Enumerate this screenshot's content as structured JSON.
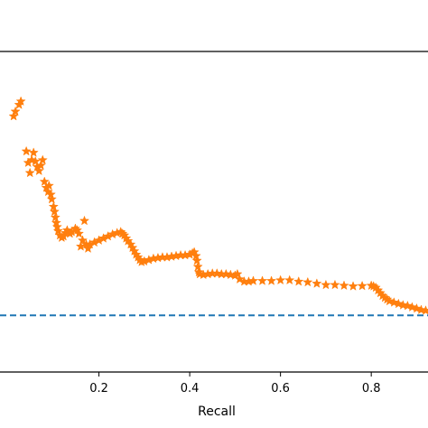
{
  "chart_data": {
    "type": "line",
    "title": "",
    "xlabel": "Recall",
    "ylabel": "",
    "xlim": [
      -0.018,
      0.925
    ],
    "ylim": [
      0.1,
      1.05
    ],
    "x_ticks": [
      0.2,
      0.4,
      0.6,
      0.8
    ],
    "x_tick_labels": [
      "0.2",
      "0.4",
      "0.6",
      "0.8"
    ],
    "grid": false,
    "legend": "none",
    "series": [
      {
        "style": "star-markers",
        "color": "#ff7f0e",
        "x": [
          0.012,
          0.016,
          0.024,
          0.028,
          0.04,
          0.044,
          0.048,
          0.052,
          0.056,
          0.06,
          0.064,
          0.068,
          0.072,
          0.076,
          0.08,
          0.084,
          0.088,
          0.09,
          0.094,
          0.096,
          0.1,
          0.102,
          0.104,
          0.106,
          0.108,
          0.11,
          0.114,
          0.118,
          0.122,
          0.126,
          0.13,
          0.136,
          0.14,
          0.148,
          0.152,
          0.156,
          0.16,
          0.164,
          0.168,
          0.172,
          0.176,
          0.18,
          0.19,
          0.2,
          0.21,
          0.22,
          0.23,
          0.24,
          0.248,
          0.252,
          0.256,
          0.26,
          0.264,
          0.27,
          0.274,
          0.278,
          0.282,
          0.286,
          0.29,
          0.294,
          0.3,
          0.31,
          0.32,
          0.33,
          0.34,
          0.35,
          0.36,
          0.37,
          0.38,
          0.39,
          0.4,
          0.406,
          0.41,
          0.414,
          0.416,
          0.418,
          0.42,
          0.422,
          0.43,
          0.44,
          0.45,
          0.46,
          0.47,
          0.48,
          0.49,
          0.5,
          0.505,
          0.51,
          0.52,
          0.53,
          0.54,
          0.56,
          0.58,
          0.6,
          0.62,
          0.64,
          0.66,
          0.68,
          0.7,
          0.72,
          0.74,
          0.76,
          0.78,
          0.8,
          0.805,
          0.81,
          0.815,
          0.82,
          0.825,
          0.83,
          0.835,
          0.84,
          0.85,
          0.86,
          0.87,
          0.88,
          0.89,
          0.9,
          0.91,
          0.92
        ],
        "y": [
          0.858,
          0.872,
          0.892,
          0.902,
          0.754,
          0.72,
          0.69,
          0.728,
          0.75,
          0.724,
          0.708,
          0.696,
          0.712,
          0.728,
          0.664,
          0.646,
          0.634,
          0.652,
          0.626,
          0.612,
          0.59,
          0.575,
          0.558,
          0.542,
          0.53,
          0.518,
          0.505,
          0.498,
          0.502,
          0.512,
          0.52,
          0.51,
          0.515,
          0.525,
          0.52,
          0.51,
          0.472,
          0.49,
          0.548,
          0.478,
          0.466,
          0.478,
          0.484,
          0.49,
          0.496,
          0.502,
          0.508,
          0.512,
          0.515,
          0.51,
          0.505,
          0.496,
          0.488,
          0.478,
          0.468,
          0.458,
          0.448,
          0.44,
          0.432,
          0.426,
          0.428,
          0.432,
          0.436,
          0.438,
          0.44,
          0.44,
          0.442,
          0.444,
          0.446,
          0.446,
          0.448,
          0.452,
          0.455,
          0.444,
          0.43,
          0.412,
          0.396,
          0.39,
          0.388,
          0.39,
          0.392,
          0.392,
          0.39,
          0.39,
          0.388,
          0.386,
          0.39,
          0.375,
          0.368,
          0.368,
          0.37,
          0.37,
          0.37,
          0.372,
          0.372,
          0.368,
          0.366,
          0.362,
          0.358,
          0.358,
          0.356,
          0.354,
          0.355,
          0.356,
          0.354,
          0.35,
          0.342,
          0.334,
          0.326,
          0.32,
          0.315,
          0.31,
          0.306,
          0.302,
          0.298,
          0.296,
          0.292,
          0.288,
          0.284,
          0.282
        ]
      },
      {
        "style": "dashed-line",
        "color": "#1f77b4",
        "x": [
          -0.018,
          0.925
        ],
        "y": [
          0.268,
          0.268
        ]
      }
    ]
  }
}
